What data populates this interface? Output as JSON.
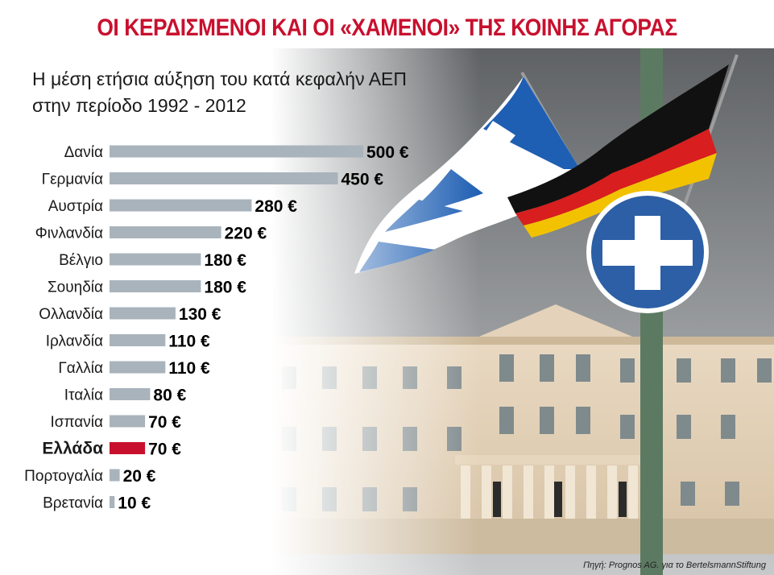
{
  "title": "ΟΙ ΚΕΡΔΙΣΜΕΝΟΙ ΚΑΙ ΟΙ «ΧΑΜΕΝΟΙ» ΤΗΣ ΚΟΙΝΗΣ ΑΓΟΡΑΣ",
  "subtitle_line1": "Η μέση ετήσια αύξηση του κατά κεφαλήν ΑΕΠ",
  "subtitle_line2": "στην περίοδο 1992 - 2012",
  "source": "Πηγή: Prognos AG. για το BertelsmannStiftung",
  "colors": {
    "title": "#c8102e",
    "bar": "#a9b3bc",
    "highlight_bar": "#c8102e",
    "label": "#1a1a1a",
    "value": "#000000"
  },
  "photo_icons": [
    "greek-flag",
    "german-flag",
    "parliament-building",
    "blue-road-sign",
    "sign-pole"
  ],
  "chart_data": {
    "type": "bar",
    "orientation": "horizontal",
    "title": "ΟΙ ΚΕΡΔΙΣΜΕΝΟΙ ΚΑΙ ΟΙ «ΧΑΜΕΝΟΙ» ΤΗΣ ΚΟΙΝΗΣ ΑΓΟΡΑΣ",
    "subtitle": "Η μέση ετήσια αύξηση του κατά κεφαλήν ΑΕΠ στην περίοδο 1992 - 2012",
    "categories": [
      "Δανία",
      "Γερμανία",
      "Αυστρία",
      "Φινλανδία",
      "Βέλγιο",
      "Σουηδία",
      "Ολλανδία",
      "Ιρλανδία",
      "Γαλλία",
      "Ιταλία",
      "Ισπανία",
      "Ελλάδα",
      "Πορτογαλία",
      "Βρετανία"
    ],
    "values": [
      500,
      450,
      280,
      220,
      180,
      180,
      130,
      110,
      110,
      80,
      70,
      70,
      20,
      10
    ],
    "value_labels": [
      "500 €",
      "450 €",
      "280 €",
      "220 €",
      "180 €",
      "180 €",
      "130 €",
      "110 €",
      "110 €",
      "80 €",
      "70 €",
      "70 €",
      "20 €",
      "10 €"
    ],
    "highlight": "Ελλάδα",
    "unit": "€",
    "xlim": [
      0,
      500
    ],
    "grid": false,
    "legend": "none"
  }
}
